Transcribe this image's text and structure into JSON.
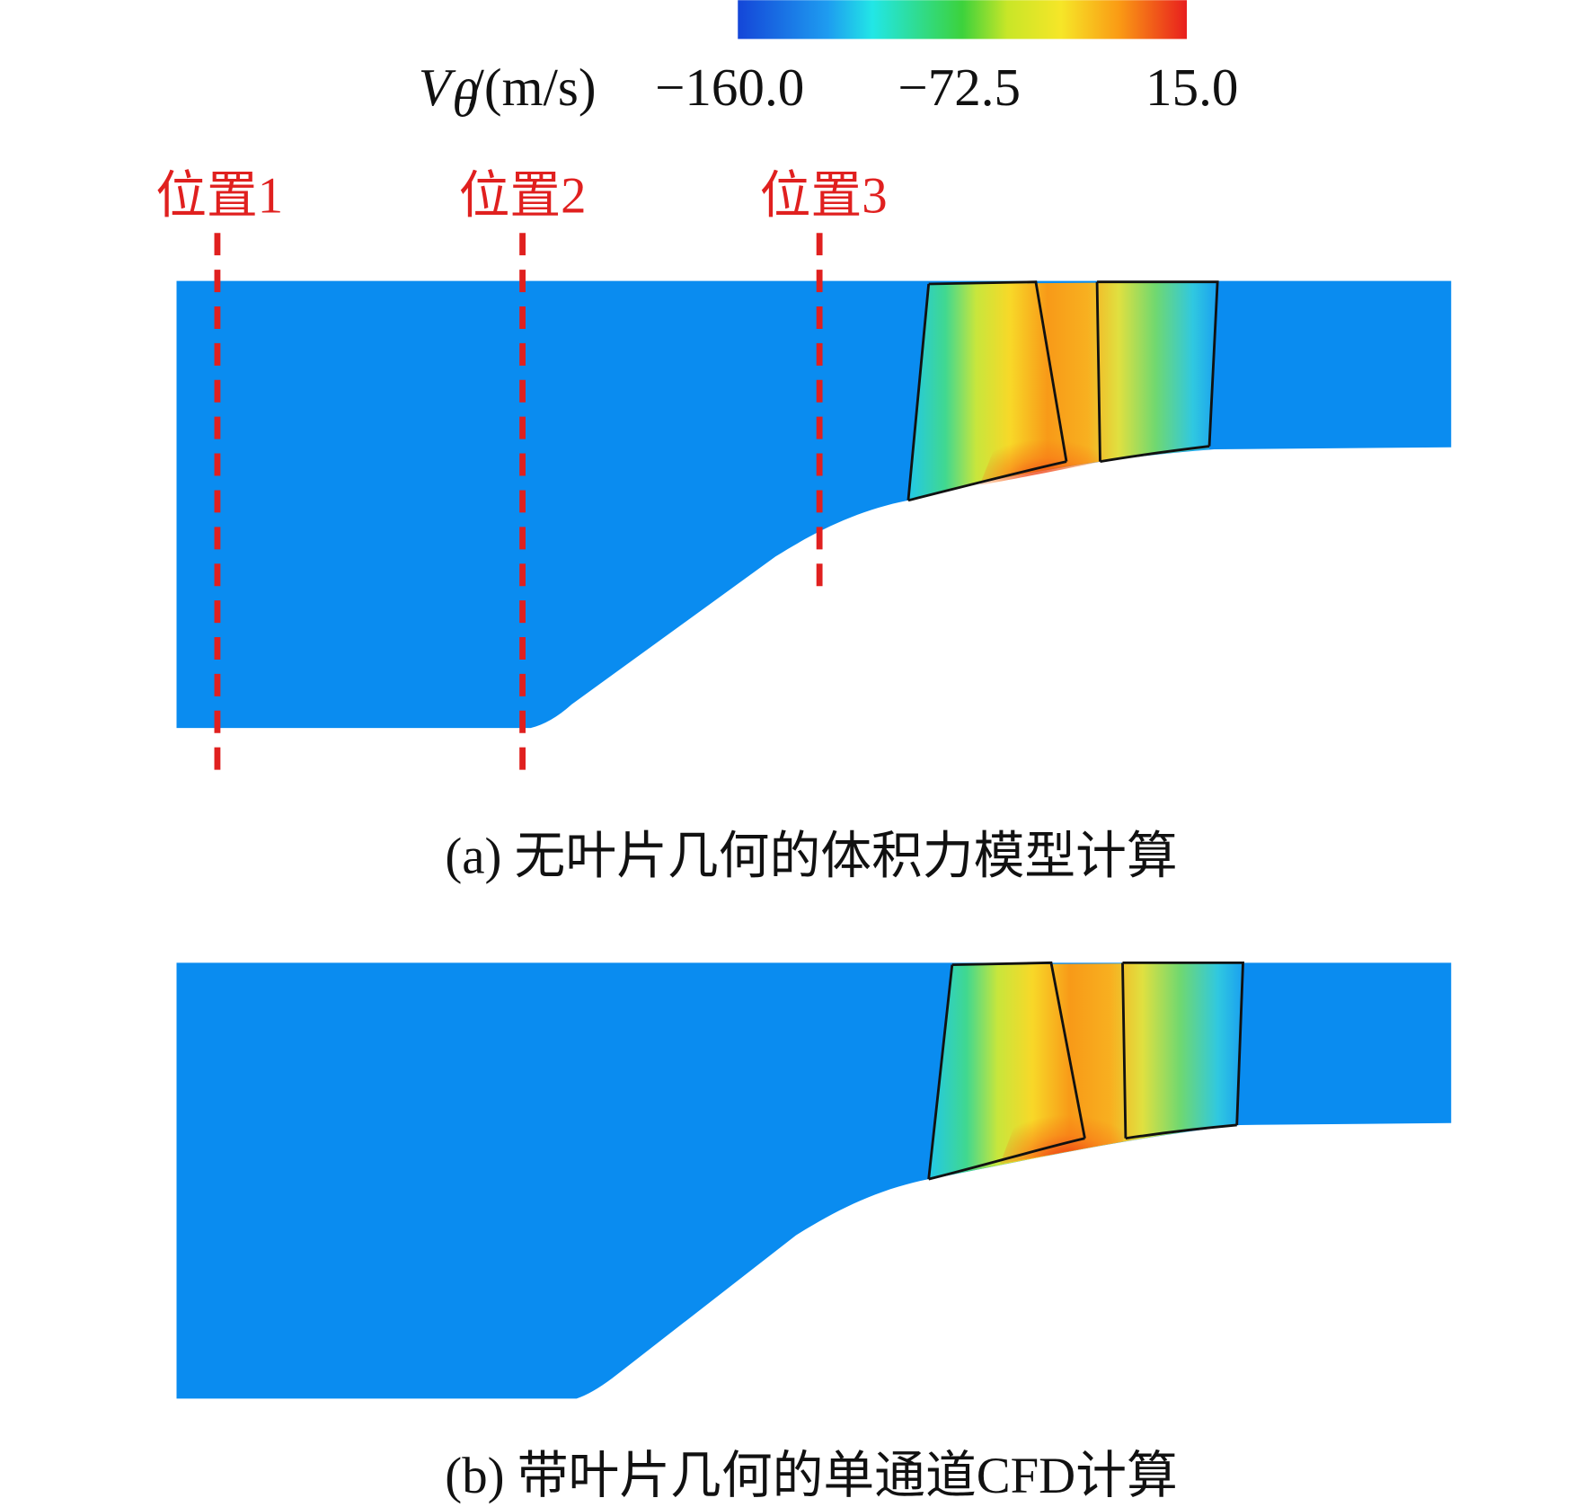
{
  "colorbar": {
    "symbol": "V",
    "subscript": "θ",
    "unit": "/(m/s)",
    "ticks": [
      "−160.0",
      "−72.5",
      "15.0"
    ]
  },
  "positions": [
    "位置1",
    "位置2",
    "位置3"
  ],
  "captions": [
    "(a) 无叶片几何的体积力模型计算",
    "(b) 带叶片几何的单通道CFD计算"
  ]
}
